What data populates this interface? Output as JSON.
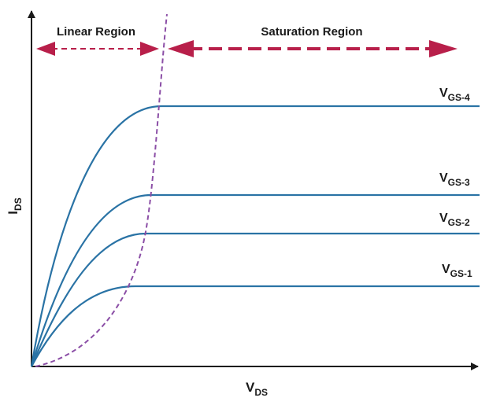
{
  "diagram": {
    "regions": {
      "linear_label": "Linear Region",
      "saturation_label": "Saturation Region"
    },
    "axes": {
      "y_main": "I",
      "y_sub": "DS",
      "x_main": "V",
      "x_sub": "DS"
    },
    "curves": [
      {
        "main": "V",
        "sub": "GS-4"
      },
      {
        "main": "V",
        "sub": "GS-3"
      },
      {
        "main": "V",
        "sub": "GS-2"
      },
      {
        "main": "V",
        "sub": "GS-1"
      }
    ],
    "colors": {
      "curve": "#2a73a5",
      "boundary": "#8b4ea6",
      "region_arrow": "#b81f4a",
      "axis": "#1a1a1a"
    }
  }
}
